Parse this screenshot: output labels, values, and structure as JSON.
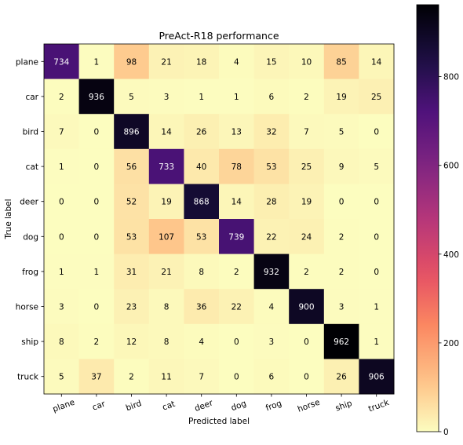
{
  "chart_data": {
    "type": "heatmap",
    "title": "PreAct-R18 performance",
    "xlabel": "Predicted label",
    "ylabel": "True label",
    "x_categories": [
      "plane",
      "car",
      "bird",
      "cat",
      "deer",
      "dog",
      "frog",
      "horse",
      "ship",
      "truck"
    ],
    "y_categories": [
      "plane",
      "car",
      "bird",
      "cat",
      "deer",
      "dog",
      "frog",
      "horse",
      "ship",
      "truck"
    ],
    "values": [
      [
        734,
        1,
        98,
        21,
        18,
        4,
        15,
        10,
        85,
        14
      ],
      [
        2,
        936,
        5,
        3,
        1,
        1,
        6,
        2,
        19,
        25
      ],
      [
        7,
        0,
        896,
        14,
        26,
        13,
        32,
        7,
        5,
        0
      ],
      [
        1,
        0,
        56,
        733,
        40,
        78,
        53,
        25,
        9,
        5
      ],
      [
        0,
        0,
        52,
        19,
        868,
        14,
        28,
        19,
        0,
        0
      ],
      [
        0,
        0,
        53,
        107,
        53,
        739,
        22,
        24,
        2,
        0
      ],
      [
        1,
        1,
        31,
        21,
        8,
        2,
        932,
        2,
        2,
        0
      ],
      [
        3,
        0,
        23,
        8,
        36,
        22,
        4,
        900,
        3,
        1
      ],
      [
        8,
        2,
        12,
        8,
        4,
        0,
        3,
        0,
        962,
        1
      ],
      [
        5,
        37,
        2,
        11,
        7,
        0,
        6,
        0,
        26,
        906
      ]
    ],
    "colormap": "magma_r",
    "vmin": 0,
    "vmax": 962,
    "colorbar": {
      "ticks": [
        0,
        200,
        400,
        600,
        800
      ],
      "tick_labels": [
        "0",
        "200",
        "400",
        "600",
        "800"
      ]
    },
    "x_tick_rotation": "slanted",
    "grid": false
  }
}
